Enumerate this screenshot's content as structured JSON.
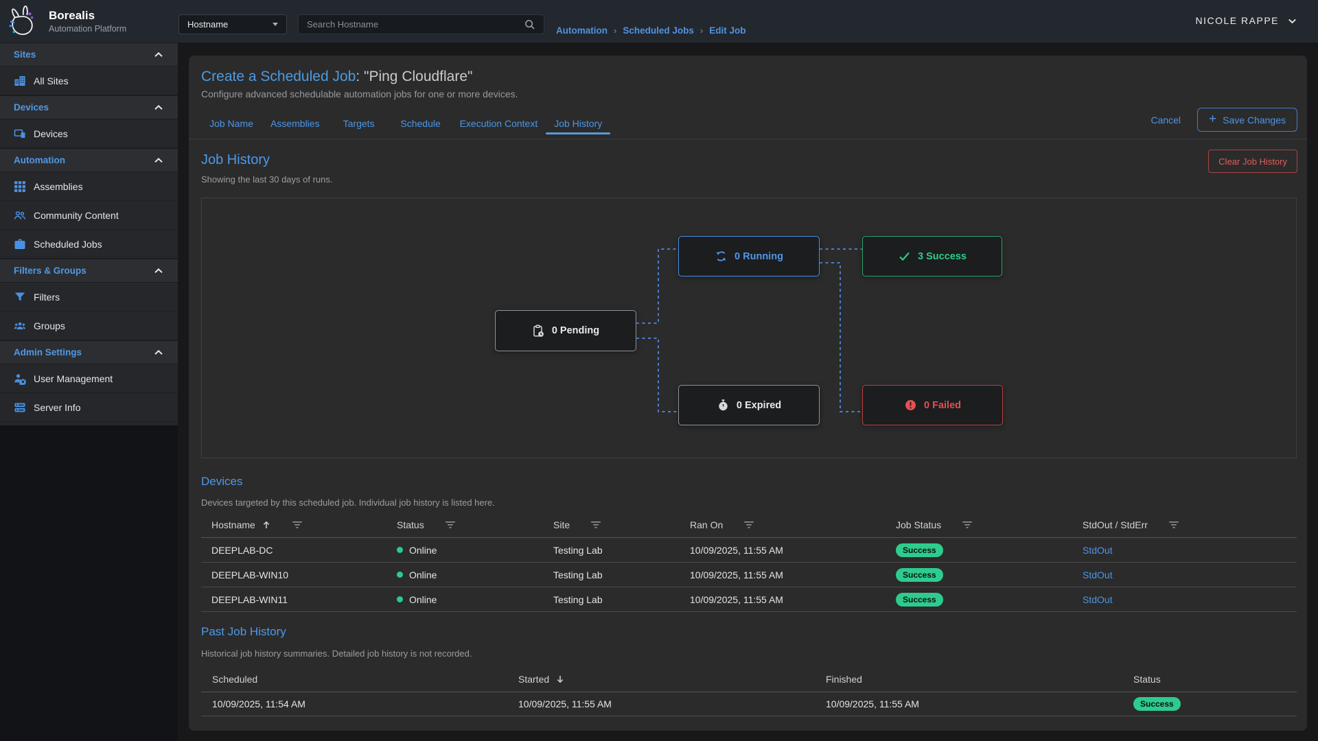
{
  "brand": {
    "name": "Borealis",
    "tagline": "Automation Platform"
  },
  "topbar": {
    "filter_label": "Hostname",
    "search_placeholder": "Search Hostname",
    "breadcrumb": [
      "Automation",
      "Scheduled Jobs",
      "Edit Job"
    ],
    "user_name": "NICOLE RAPPE"
  },
  "sidebar": {
    "sections": [
      {
        "label": "Sites",
        "items": [
          {
            "icon": "buildings",
            "label": "All Sites"
          }
        ]
      },
      {
        "label": "Devices",
        "items": [
          {
            "icon": "devices",
            "label": "Devices"
          }
        ]
      },
      {
        "label": "Automation",
        "items": [
          {
            "icon": "grid",
            "label": "Assemblies"
          },
          {
            "icon": "community",
            "label": "Community Content"
          },
          {
            "icon": "briefcase",
            "label": "Scheduled Jobs"
          }
        ]
      },
      {
        "label": "Filters & Groups",
        "items": [
          {
            "icon": "funnel",
            "label": "Filters"
          },
          {
            "icon": "groups",
            "label": "Groups"
          }
        ]
      },
      {
        "label": "Admin Settings",
        "items": [
          {
            "icon": "user-gear",
            "label": "User Management"
          },
          {
            "icon": "server",
            "label": "Server Info"
          }
        ]
      }
    ]
  },
  "page": {
    "title": "Create a Scheduled Job",
    "title_suffix": ": \"Ping Cloudflare\"",
    "subtitle": "Configure advanced schedulable automation jobs for one or more devices.",
    "tabs": [
      "Job Name",
      "Assemblies",
      "Targets",
      "Schedule",
      "Execution Context",
      "Job History"
    ],
    "active_tab": "Job History",
    "cancel": "Cancel",
    "save": "Save Changes"
  },
  "job_history": {
    "heading": "Job History",
    "subheading": "Showing the last 30 days of runs.",
    "clear_button": "Clear Job History",
    "nodes": [
      {
        "id": "pending",
        "count": "0",
        "label": "Pending",
        "state": "neutral",
        "icon": "clipboard-clock"
      },
      {
        "id": "running",
        "count": "0",
        "label": "Running",
        "state": "info",
        "icon": "sync"
      },
      {
        "id": "success",
        "count": "3",
        "label": "Success",
        "state": "ok",
        "icon": "check"
      },
      {
        "id": "expired",
        "count": "0",
        "label": "Expired",
        "state": "neutral",
        "icon": "timer"
      },
      {
        "id": "failed",
        "count": "0",
        "label": "Failed",
        "state": "error",
        "icon": "alert"
      }
    ]
  },
  "devices": {
    "heading": "Devices",
    "subheading": "Devices targeted by this scheduled job. Individual job history is listed here.",
    "columns": [
      "Hostname",
      "Status",
      "Site",
      "Ran On",
      "Job Status",
      "StdOut / StdErr"
    ],
    "rows": [
      {
        "hostname": "DEEPLAB-DC",
        "status": "Online",
        "site": "Testing Lab",
        "ran_on": "10/09/2025, 11:55 AM",
        "job_status": "Success",
        "output": "StdOut"
      },
      {
        "hostname": "DEEPLAB-WIN10",
        "status": "Online",
        "site": "Testing Lab",
        "ran_on": "10/09/2025, 11:55 AM",
        "job_status": "Success",
        "output": "StdOut"
      },
      {
        "hostname": "DEEPLAB-WIN11",
        "status": "Online",
        "site": "Testing Lab",
        "ran_on": "10/09/2025, 11:55 AM",
        "job_status": "Success",
        "output": "StdOut"
      }
    ]
  },
  "past_jobs": {
    "heading": "Past Job History",
    "subheading": "Historical job history summaries. Detailed job history is not recorded.",
    "columns": [
      "Scheduled",
      "Started",
      "Finished",
      "Status"
    ],
    "rows": [
      {
        "scheduled": "10/09/2025, 11:54 AM",
        "started": "10/09/2025, 11:55 AM",
        "finished": "10/09/2025, 11:55 AM",
        "status": "Success"
      }
    ]
  },
  "colors": {
    "accent_blue": "#4e96e6",
    "green": "#2dcc8e",
    "red": "#e05e57",
    "connector": "#4a80d2"
  }
}
